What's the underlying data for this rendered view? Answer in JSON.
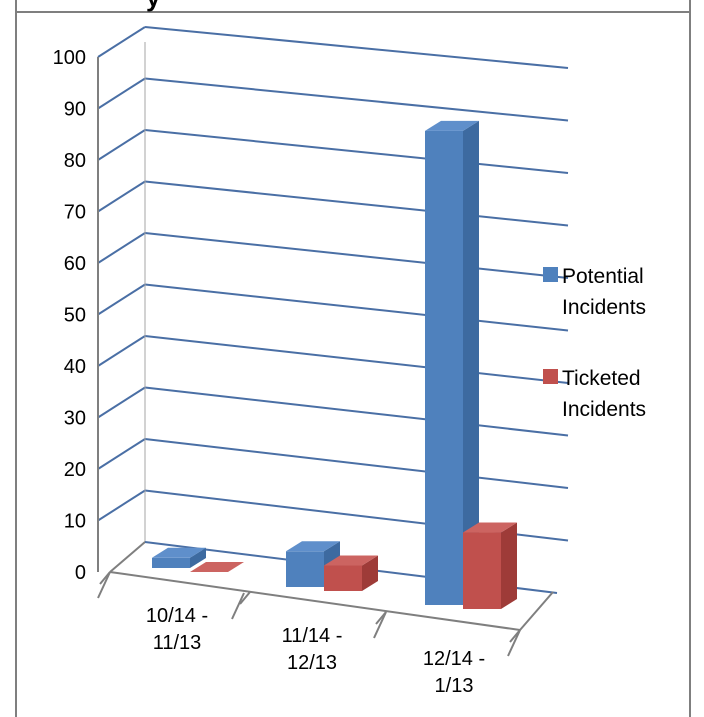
{
  "chart_data": {
    "type": "bar",
    "title_fragment": "y",
    "categories": [
      [
        "10/14 -",
        "11/13"
      ],
      [
        "11/14 -",
        "12/13"
      ],
      [
        "12/14 -",
        "1/13"
      ]
    ],
    "series": [
      {
        "name": [
          "Potential",
          "Incidents"
        ],
        "values": [
          2,
          7,
          93
        ],
        "color": "#4F81BD",
        "side": "#3D6AA0",
        "top": "#5F8FCB"
      },
      {
        "name": [
          "Ticketed",
          "Incidents"
        ],
        "values": [
          0,
          5,
          15
        ],
        "color": "#C0504D",
        "side": "#9E3B38",
        "top": "#CC6461"
      }
    ],
    "ylim": [
      0,
      100
    ],
    "yticks": [
      "0",
      "10",
      "20",
      "30",
      "40",
      "50",
      "60",
      "70",
      "80",
      "90",
      "100"
    ],
    "grid": true,
    "legend": "right",
    "style": "3d-clustered-column"
  }
}
